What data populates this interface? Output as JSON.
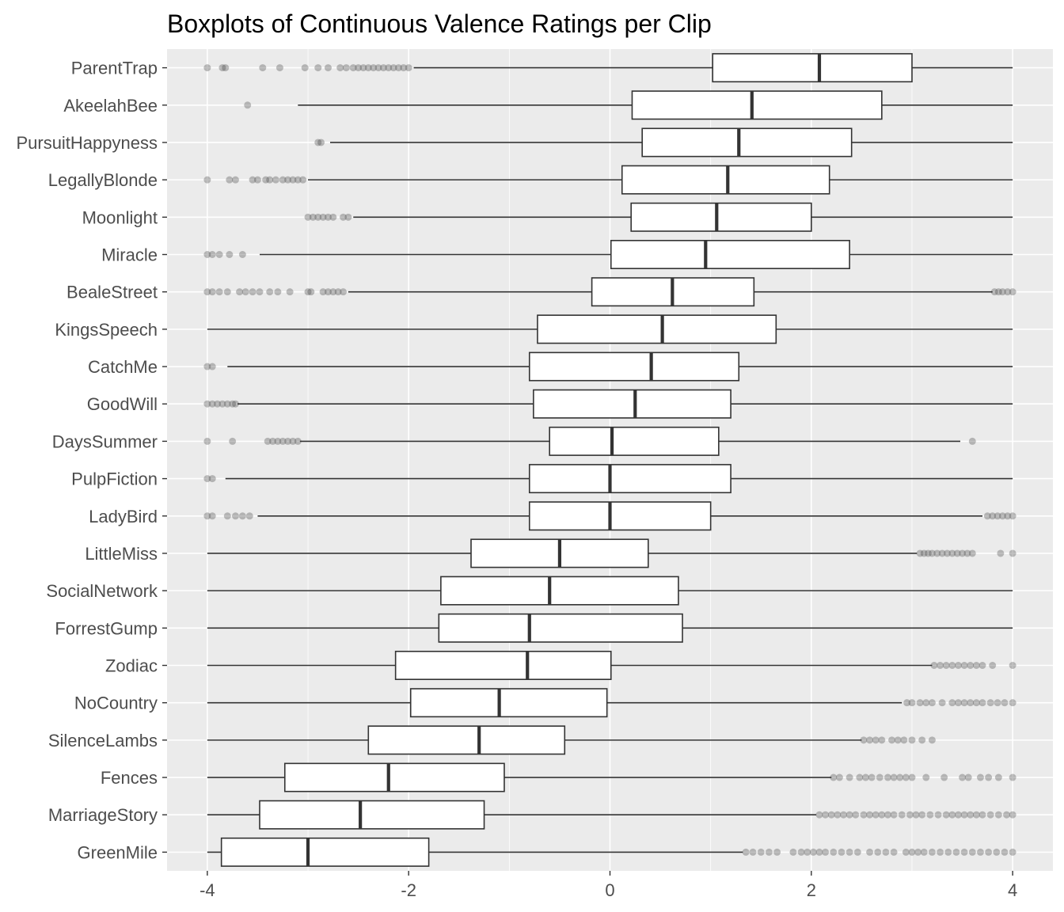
{
  "chart_data": {
    "type": "boxplot",
    "title": "Boxplots of Continuous Valence Ratings per Clip",
    "xlabel": "",
    "ylabel": "",
    "xlim": [
      -4.4,
      4.4
    ],
    "x_ticks": [
      -4,
      -2,
      0,
      2,
      4
    ],
    "x_tick_labels": [
      "-4",
      "-2",
      "0",
      "2",
      "4"
    ],
    "grid": true,
    "orientation": "horizontal",
    "categories": [
      "ParentTrap",
      "AkeelahBee",
      "PursuitHappyness",
      "LegallyBlonde",
      "Moonlight",
      "Miracle",
      "BealeStreet",
      "KingsSpeech",
      "CatchMe",
      "GoodWill",
      "DaysSummer",
      "PulpFiction",
      "LadyBird",
      "LittleMiss",
      "SocialNetwork",
      "ForrestGump",
      "Zodiac",
      "NoCountry",
      "SilenceLambs",
      "Fences",
      "MarriageStory",
      "GreenMile"
    ],
    "boxes": [
      {
        "label": "ParentTrap",
        "whisker_low": -1.95,
        "q1": 1.02,
        "median": 2.08,
        "q3": 3.0,
        "whisker_high": 4.0,
        "outliers": [
          -4.0,
          -3.85,
          -3.82,
          -3.45,
          -3.28,
          -3.03,
          -2.9,
          -2.8,
          -2.68,
          -2.62,
          -2.55,
          -2.5,
          -2.45,
          -2.4,
          -2.35,
          -2.3,
          -2.25,
          -2.2,
          -2.15,
          -2.1,
          -2.05,
          -2.0
        ]
      },
      {
        "label": "AkeelahBee",
        "whisker_low": -3.1,
        "q1": 0.22,
        "median": 1.41,
        "q3": 2.7,
        "whisker_high": 4.0,
        "outliers": [
          -3.6
        ]
      },
      {
        "label": "PursuitHappyness",
        "whisker_low": -2.78,
        "q1": 0.32,
        "median": 1.28,
        "q3": 2.4,
        "whisker_high": 4.0,
        "outliers": [
          -2.9,
          -2.87
        ]
      },
      {
        "label": "LegallyBlonde",
        "whisker_low": -3.0,
        "q1": 0.12,
        "median": 1.17,
        "q3": 2.18,
        "whisker_high": 4.0,
        "outliers": [
          -4.0,
          -3.78,
          -3.72,
          -3.55,
          -3.5,
          -3.42,
          -3.38,
          -3.32,
          -3.25,
          -3.2,
          -3.15,
          -3.1,
          -3.05
        ]
      },
      {
        "label": "Moonlight",
        "whisker_low": -2.55,
        "q1": 0.21,
        "median": 1.06,
        "q3": 2.0,
        "whisker_high": 4.0,
        "outliers": [
          -3.0,
          -2.95,
          -2.9,
          -2.85,
          -2.8,
          -2.75,
          -2.65,
          -2.6
        ]
      },
      {
        "label": "Miracle",
        "whisker_low": -3.48,
        "q1": 0.01,
        "median": 0.95,
        "q3": 2.38,
        "whisker_high": 4.0,
        "outliers": [
          -4.0,
          -3.95,
          -3.88,
          -3.78,
          -3.65
        ]
      },
      {
        "label": "BealeStreet",
        "whisker_low": -2.6,
        "q1": -0.18,
        "median": 0.62,
        "q3": 1.43,
        "whisker_high": 3.8,
        "outliers": [
          -4.0,
          -3.95,
          -3.88,
          -3.8,
          -3.68,
          -3.62,
          -3.55,
          -3.48,
          -3.38,
          -3.3,
          -3.18,
          -3.0,
          -2.97,
          -2.85,
          -2.8,
          -2.75,
          -2.7,
          -2.65,
          3.82,
          3.86,
          3.9,
          3.95,
          4.0
        ]
      },
      {
        "label": "KingsSpeech",
        "whisker_low": -4.0,
        "q1": -0.72,
        "median": 0.52,
        "q3": 1.65,
        "whisker_high": 4.0,
        "outliers": []
      },
      {
        "label": "CatchMe",
        "whisker_low": -3.8,
        "q1": -0.8,
        "median": 0.41,
        "q3": 1.28,
        "whisker_high": 4.0,
        "outliers": [
          -4.0,
          -3.95
        ]
      },
      {
        "label": "GoodWill",
        "whisker_low": -3.7,
        "q1": -0.76,
        "median": 0.25,
        "q3": 1.2,
        "whisker_high": 4.0,
        "outliers": [
          -4.0,
          -3.95,
          -3.9,
          -3.85,
          -3.8,
          -3.75,
          -3.72
        ]
      },
      {
        "label": "DaysSummer",
        "whisker_low": -3.08,
        "q1": -0.6,
        "median": 0.02,
        "q3": 1.08,
        "whisker_high": 3.48,
        "outliers": [
          -4.0,
          -3.75,
          -3.4,
          -3.35,
          -3.3,
          -3.25,
          -3.2,
          -3.15,
          -3.1,
          3.6
        ]
      },
      {
        "label": "PulpFiction",
        "whisker_low": -3.82,
        "q1": -0.8,
        "median": 0.0,
        "q3": 1.2,
        "whisker_high": 4.0,
        "outliers": [
          -4.0,
          -3.95
        ]
      },
      {
        "label": "LadyBird",
        "whisker_low": -3.5,
        "q1": -0.8,
        "median": 0.0,
        "q3": 1.0,
        "whisker_high": 3.7,
        "outliers": [
          -4.0,
          -3.95,
          -3.8,
          -3.72,
          -3.65,
          -3.58,
          3.75,
          3.8,
          3.85,
          3.9,
          3.95,
          4.0
        ]
      },
      {
        "label": "LittleMiss",
        "whisker_low": -4.0,
        "q1": -1.38,
        "median": -0.5,
        "q3": 0.38,
        "whisker_high": 3.05,
        "outliers": [
          3.08,
          3.12,
          3.16,
          3.2,
          3.25,
          3.3,
          3.35,
          3.4,
          3.45,
          3.5,
          3.55,
          3.6,
          3.88,
          4.0
        ]
      },
      {
        "label": "SocialNetwork",
        "whisker_low": -4.0,
        "q1": -1.68,
        "median": -0.6,
        "q3": 0.68,
        "whisker_high": 4.0,
        "outliers": []
      },
      {
        "label": "ForrestGump",
        "whisker_low": -4.0,
        "q1": -1.7,
        "median": -0.8,
        "q3": 0.72,
        "whisker_high": 4.0,
        "outliers": []
      },
      {
        "label": "Zodiac",
        "whisker_low": -4.0,
        "q1": -2.13,
        "median": -0.82,
        "q3": 0.01,
        "whisker_high": 3.2,
        "outliers": [
          3.22,
          3.28,
          3.34,
          3.4,
          3.46,
          3.52,
          3.58,
          3.64,
          3.7,
          3.8,
          4.0
        ]
      },
      {
        "label": "NoCountry",
        "whisker_low": -4.0,
        "q1": -1.98,
        "median": -1.1,
        "q3": -0.03,
        "whisker_high": 2.9,
        "outliers": [
          2.95,
          3.0,
          3.08,
          3.14,
          3.2,
          3.3,
          3.4,
          3.46,
          3.52,
          3.58,
          3.64,
          3.7,
          3.78,
          3.85,
          3.92,
          4.0
        ]
      },
      {
        "label": "SilenceLambs",
        "whisker_low": -4.0,
        "q1": -2.4,
        "median": -1.3,
        "q3": -0.45,
        "whisker_high": 2.5,
        "outliers": [
          2.52,
          2.58,
          2.64,
          2.7,
          2.8,
          2.86,
          2.92,
          3.0,
          3.1,
          3.2
        ]
      },
      {
        "label": "Fences",
        "whisker_low": -4.0,
        "q1": -3.23,
        "median": -2.2,
        "q3": -1.05,
        "whisker_high": 2.2,
        "outliers": [
          2.22,
          2.28,
          2.38,
          2.48,
          2.54,
          2.6,
          2.68,
          2.76,
          2.82,
          2.88,
          2.94,
          3.0,
          3.14,
          3.32,
          3.5,
          3.56,
          3.68,
          3.76,
          3.86,
          4.0
        ]
      },
      {
        "label": "MarriageStory",
        "whisker_low": -4.0,
        "q1": -3.48,
        "median": -2.48,
        "q3": -1.25,
        "whisker_high": 2.05,
        "outliers": [
          2.08,
          2.14,
          2.2,
          2.26,
          2.32,
          2.38,
          2.44,
          2.52,
          2.58,
          2.64,
          2.7,
          2.76,
          2.82,
          2.9,
          2.98,
          3.04,
          3.1,
          3.18,
          3.26,
          3.34,
          3.4,
          3.46,
          3.52,
          3.58,
          3.64,
          3.7,
          3.78,
          3.86,
          3.94,
          4.0
        ]
      },
      {
        "label": "GreenMile",
        "whisker_low": -4.0,
        "q1": -3.86,
        "median": -3.0,
        "q3": -1.8,
        "whisker_high": 1.32,
        "outliers": [
          1.35,
          1.42,
          1.5,
          1.58,
          1.66,
          1.82,
          1.9,
          1.96,
          2.02,
          2.08,
          2.14,
          2.22,
          2.3,
          2.38,
          2.46,
          2.58,
          2.66,
          2.74,
          2.82,
          2.94,
          3.0,
          3.06,
          3.12,
          3.2,
          3.28,
          3.36,
          3.44,
          3.52,
          3.6,
          3.68,
          3.76,
          3.84,
          3.92,
          4.0
        ]
      }
    ]
  }
}
